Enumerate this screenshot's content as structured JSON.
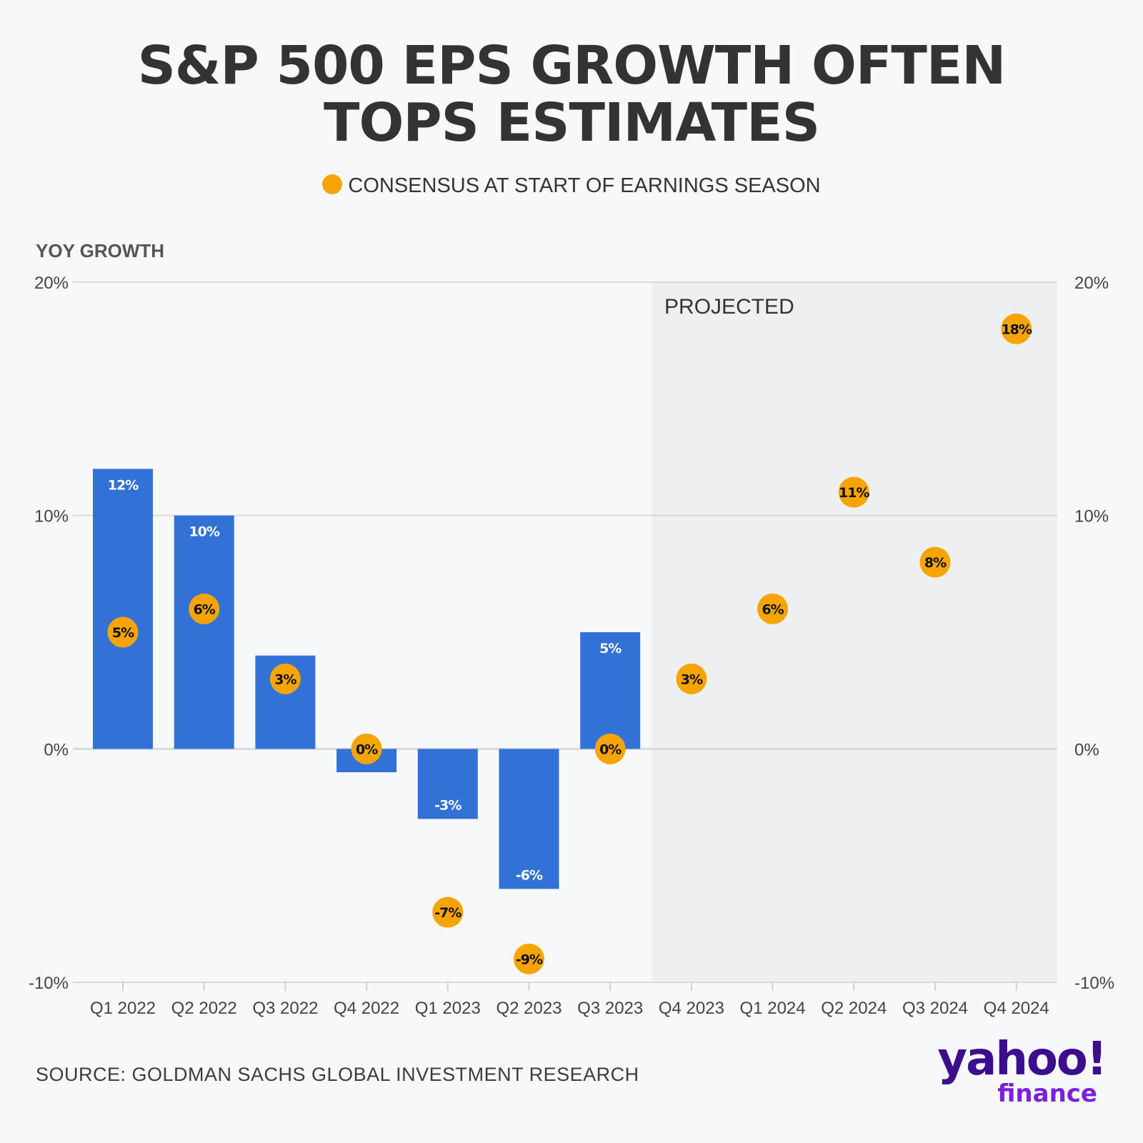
{
  "title_line1": "S&P 500 EPS GROWTH OFTEN",
  "title_line2": "TOPS ESTIMATES",
  "legend": {
    "label": "CONSENSUS AT START OF EARNINGS SEASON",
    "color": "#f6a500"
  },
  "source": "SOURCE: GOLDMAN SACHS GLOBAL INVESTMENT RESEARCH",
  "logo": {
    "yahoo": "yahoo!",
    "finance": "finance"
  },
  "chart_data": {
    "type": "bar",
    "ylabel": "YOY GROWTH",
    "ylim": [
      -10,
      20
    ],
    "yticks": [
      "20%",
      "10%",
      "0%",
      "-10%"
    ],
    "ytick_values": [
      20,
      10,
      0,
      -10
    ],
    "projected_label": "PROJECTED",
    "projected_from": "Q4 2023",
    "categories": [
      "Q1 2022",
      "Q2 2022",
      "Q3 2022",
      "Q4 2022",
      "Q1 2023",
      "Q2 2023",
      "Q3 2023",
      "Q4 2023",
      "Q1 2024",
      "Q2 2024",
      "Q3 2024",
      "Q4 2024"
    ],
    "series": [
      {
        "type": "bar",
        "color": "#3272d6",
        "values": [
          12,
          10,
          4,
          -1,
          -3,
          -6,
          5,
          null,
          null,
          null,
          null,
          null
        ],
        "labels": [
          "12%",
          "10%",
          "",
          "",
          "-3%",
          "-6%",
          "5%",
          "",
          "",
          "",
          "",
          ""
        ]
      },
      {
        "name": "CONSENSUS AT START OF EARNINGS SEASON",
        "type": "scatter",
        "color": "#f6a500",
        "values": [
          5,
          6,
          3,
          0,
          -7,
          -9,
          0,
          3,
          6,
          11,
          8,
          18
        ],
        "labels": [
          "5%",
          "6%",
          "3%",
          "0%",
          "-7%",
          "-9%",
          "0%",
          "3%",
          "6%",
          "11%",
          "8%",
          "18%"
        ]
      }
    ],
    "grid": true,
    "legend_position": "top-center",
    "colors": {
      "bar": "#3272d6",
      "dot": "#f6a500",
      "projected_shade": "#eeeff1",
      "grid": "#d9dadc"
    }
  }
}
